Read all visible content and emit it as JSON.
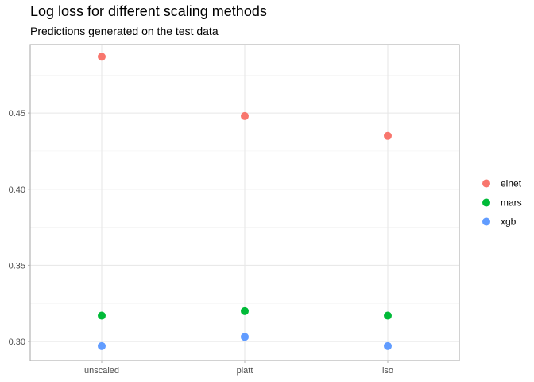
{
  "chart_data": {
    "type": "scatter",
    "title": "Log loss for different scaling methods",
    "subtitle": "Predictions generated on the test data",
    "xlabel": "",
    "ylabel": "",
    "categories": [
      "unscaled",
      "platt",
      "iso"
    ],
    "ylim": [
      0.2875,
      0.495
    ],
    "y_ticks": [
      0.3,
      0.35,
      0.4,
      0.45
    ],
    "y_tick_labels": [
      "0.30",
      "0.35",
      "0.40",
      "0.45"
    ],
    "grid": true,
    "legend_position": "right",
    "series": [
      {
        "name": "elnet",
        "color": "#F8766D",
        "values": [
          0.487,
          0.448,
          0.435
        ]
      },
      {
        "name": "mars",
        "color": "#00BA38",
        "values": [
          0.317,
          0.32,
          0.317
        ]
      },
      {
        "name": "xgb",
        "color": "#619CFF",
        "values": [
          0.297,
          0.303,
          0.297
        ]
      }
    ]
  }
}
